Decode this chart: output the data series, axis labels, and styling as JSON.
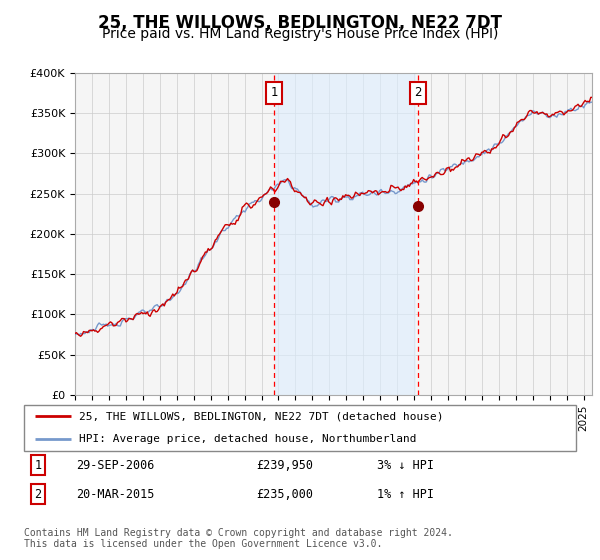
{
  "title": "25, THE WILLOWS, BEDLINGTON, NE22 7DT",
  "subtitle": "Price paid vs. HM Land Registry's House Price Index (HPI)",
  "ylabel_ticks": [
    "£0",
    "£50K",
    "£100K",
    "£150K",
    "£200K",
    "£250K",
    "£300K",
    "£350K",
    "£400K"
  ],
  "ytick_values": [
    0,
    50000,
    100000,
    150000,
    200000,
    250000,
    300000,
    350000,
    400000
  ],
  "ylim": [
    0,
    400000
  ],
  "xlim_start": 1995.0,
  "xlim_end": 2025.5,
  "sale1_x": 2006.75,
  "sale1_y": 239950,
  "sale1_label": "29-SEP-2006",
  "sale1_price": "£239,950",
  "sale1_hpi": "3% ↓ HPI",
  "sale2_x": 2015.21,
  "sale2_y": 235000,
  "sale2_label": "20-MAR-2015",
  "sale2_price": "£235,000",
  "sale2_hpi": "1% ↑ HPI",
  "red_line_color": "#cc0000",
  "blue_line_color": "#7799cc",
  "blue_fill_color": "#ddeeff",
  "plot_bg_color": "#f5f5f5",
  "legend_label_red": "25, THE WILLOWS, BEDLINGTON, NE22 7DT (detached house)",
  "legend_label_blue": "HPI: Average price, detached house, Northumberland",
  "footnote": "Contains HM Land Registry data © Crown copyright and database right 2024.\nThis data is licensed under the Open Government Licence v3.0.",
  "title_fontsize": 12,
  "subtitle_fontsize": 10
}
